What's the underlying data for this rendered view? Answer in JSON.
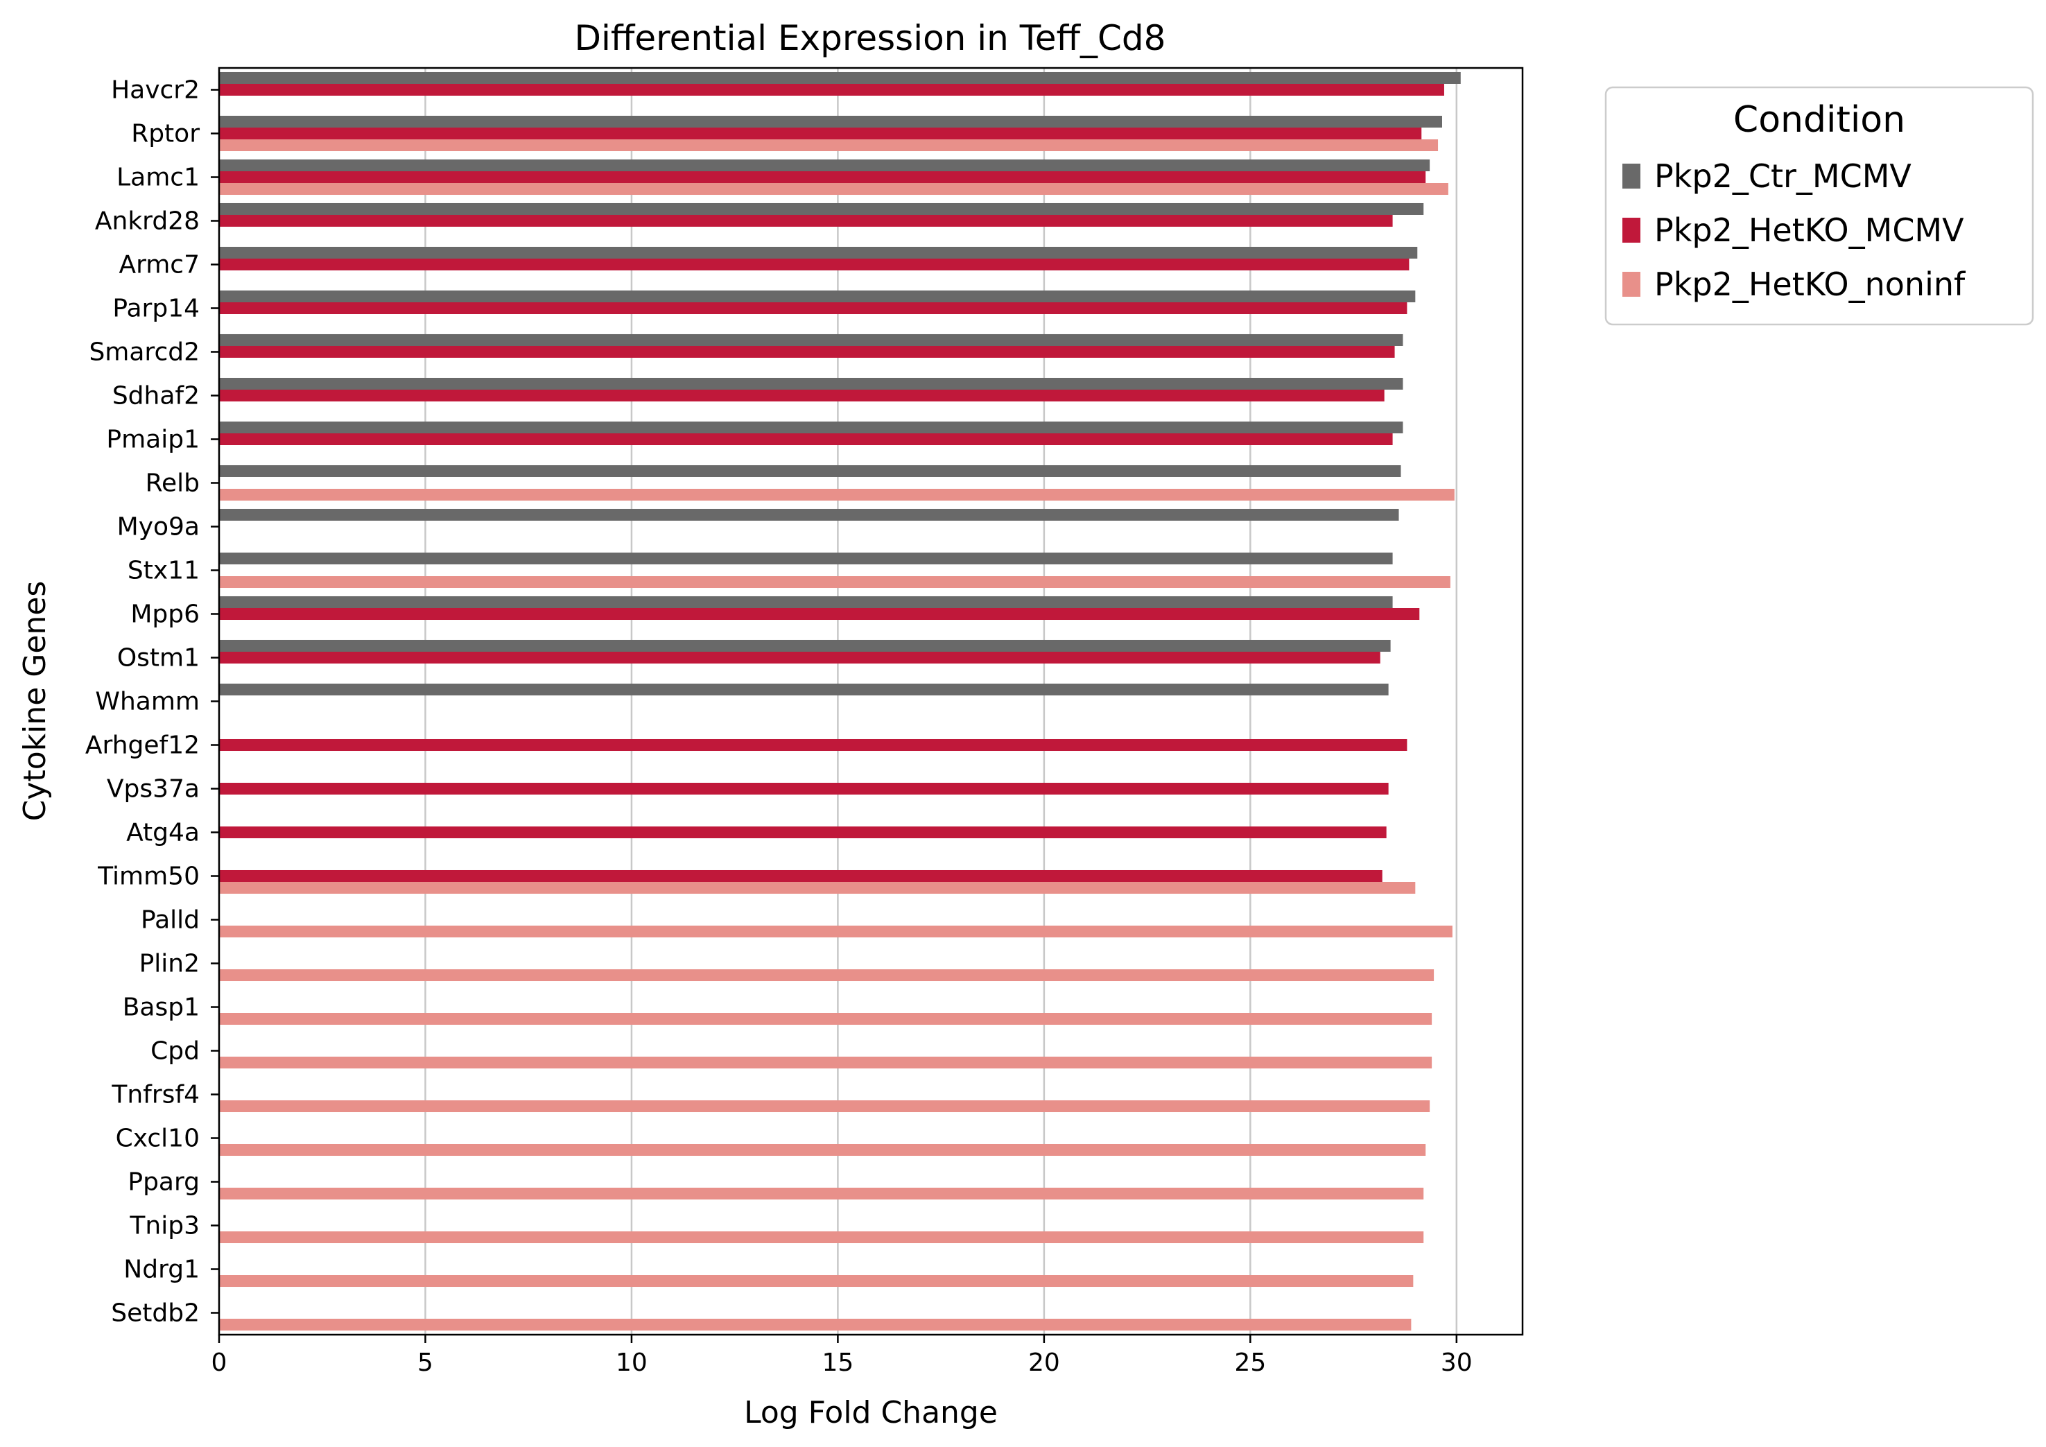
{
  "chart_data": {
    "type": "bar",
    "orientation": "horizontal",
    "title": "Differential Expression in Teff_Cd8",
    "xlabel": "Log Fold Change",
    "ylabel": "Cytokine Genes",
    "xlim": [
      0,
      31.6
    ],
    "xticks": [
      0,
      5,
      10,
      15,
      20,
      25,
      30
    ],
    "grid": "vertical",
    "legend": {
      "title": "Condition",
      "placement": "outside-top-right"
    },
    "categories": [
      "Havcr2",
      "Rptor",
      "Lamc1",
      "Ankrd28",
      "Armc7",
      "Parp14",
      "Smarcd2",
      "Sdhaf2",
      "Pmaip1",
      "Relb",
      "Myo9a",
      "Stx11",
      "Mpp6",
      "Ostm1",
      "Whamm",
      "Arhgef12",
      "Vps37a",
      "Atg4a",
      "Timm50",
      "Palld",
      "Plin2",
      "Basp1",
      "Cpd",
      "Tnfrsf4",
      "Cxcl10",
      "Pparg",
      "Tnip3",
      "Ndrg1",
      "Setdb2"
    ],
    "series": [
      {
        "name": "Pkp2_Ctr_MCMV",
        "color": "#696969",
        "values": [
          30.1,
          29.65,
          29.35,
          29.2,
          29.05,
          29.0,
          28.7,
          28.7,
          28.7,
          28.65,
          28.6,
          28.45,
          28.45,
          28.4,
          28.35,
          null,
          null,
          null,
          null,
          null,
          null,
          null,
          null,
          null,
          null,
          null,
          null,
          null,
          null
        ]
      },
      {
        "name": "Pkp2_HetKO_MCMV",
        "color": "#c0183a",
        "values": [
          29.7,
          29.15,
          29.25,
          28.45,
          28.85,
          28.8,
          28.5,
          28.25,
          28.45,
          null,
          null,
          null,
          29.1,
          28.15,
          null,
          28.8,
          28.35,
          28.3,
          28.2,
          null,
          null,
          null,
          null,
          null,
          null,
          null,
          null,
          null,
          null
        ]
      },
      {
        "name": "Pkp2_HetKO_noninf",
        "color": "#e8908a",
        "values": [
          null,
          29.55,
          29.8,
          null,
          null,
          null,
          null,
          null,
          null,
          29.95,
          null,
          29.85,
          null,
          null,
          null,
          null,
          null,
          null,
          29.0,
          29.9,
          29.45,
          29.4,
          29.4,
          29.35,
          29.25,
          29.2,
          29.2,
          28.95,
          28.9
        ]
      }
    ]
  }
}
